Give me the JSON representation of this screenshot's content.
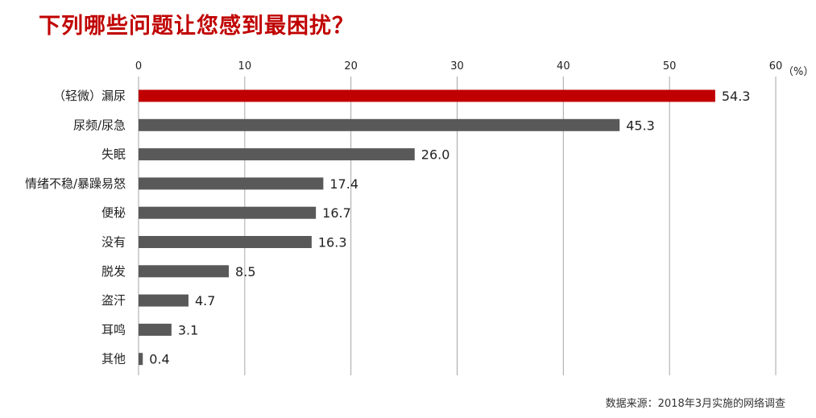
{
  "title": "下列哪些问题让您感到最困扰？",
  "source": "数据来源：2018年3月实施的网络调查",
  "colors": {
    "highlight": "#c00000",
    "bar": "#595959",
    "grid": "#a6a6a6",
    "text": "#222222"
  },
  "chart_data": {
    "type": "bar",
    "orientation": "horizontal",
    "title": "下列哪些问题让您感到最困扰？",
    "unit": "（%）",
    "xlim": [
      0,
      60
    ],
    "xticks": [
      0,
      10,
      20,
      30,
      40,
      50,
      60
    ],
    "axis_position": "top",
    "grid": true,
    "highlight_index": 0,
    "categories": [
      "（轻微）漏尿",
      "尿频/尿急",
      "失眠",
      "情绪不稳/暴躁易怒",
      "便秘",
      "没有",
      "脱发",
      "盗汗",
      "耳鸣",
      "其他"
    ],
    "values": [
      54.3,
      45.3,
      26.0,
      17.4,
      16.7,
      16.3,
      8.5,
      4.7,
      3.1,
      0.4
    ],
    "value_labels": [
      "54.3",
      "45.3",
      "26.0",
      "17.4",
      "16.7",
      "16.3",
      "8.5",
      "4.7",
      "3.1",
      "0.4"
    ]
  }
}
